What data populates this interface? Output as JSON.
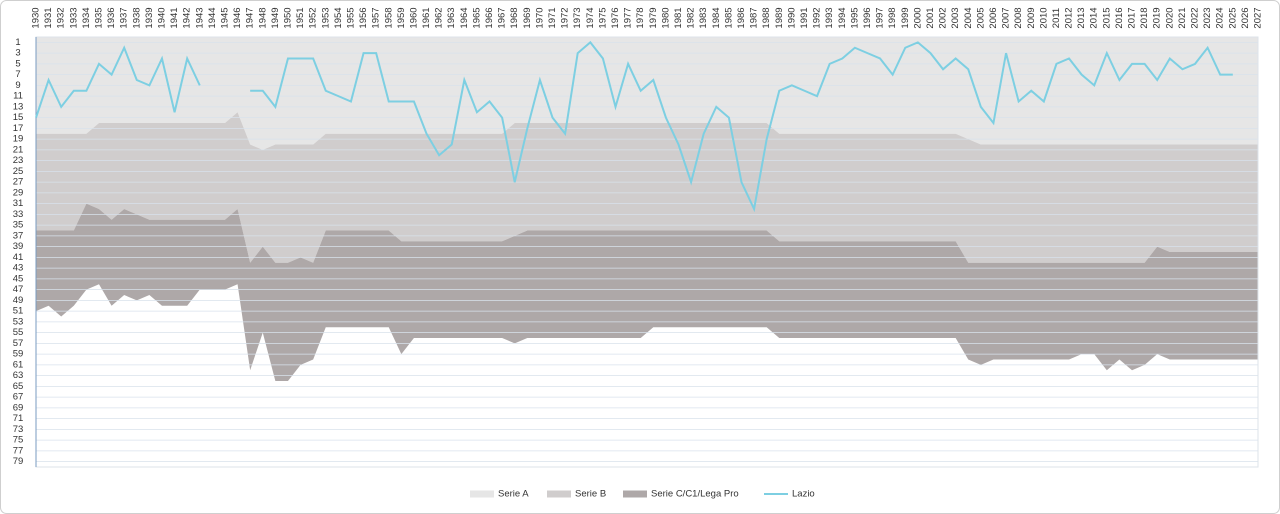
{
  "chart_data": {
    "type": "area_line",
    "categories": [
      "1930",
      "1931",
      "1932",
      "1933",
      "1934",
      "1935",
      "1936",
      "1937",
      "1938",
      "1939",
      "1940",
      "1941",
      "1942",
      "1943",
      "1944",
      "1945",
      "1946",
      "1947",
      "1948",
      "1949",
      "1950",
      "1951",
      "1952",
      "1953",
      "1954",
      "1955",
      "1956",
      "1957",
      "1958",
      "1959",
      "1960",
      "1961",
      "1962",
      "1963",
      "1964",
      "1965",
      "1966",
      "1967",
      "1968",
      "1969",
      "1970",
      "1971",
      "1972",
      "1973",
      "1974",
      "1975",
      "1976",
      "1977",
      "1978",
      "1979",
      "1980",
      "1981",
      "1982",
      "1983",
      "1984",
      "1985",
      "1986",
      "1987",
      "1988",
      "1989",
      "1990",
      "1991",
      "1992",
      "1993",
      "1994",
      "1995",
      "1996",
      "1997",
      "1998",
      "1999",
      "2000",
      "2001",
      "2002",
      "2003",
      "2004",
      "2005",
      "2006",
      "2007",
      "2008",
      "2009",
      "2010",
      "2011",
      "2012",
      "2013",
      "2014",
      "2015",
      "2016",
      "2017",
      "2018",
      "2019",
      "2020",
      "2021",
      "2022",
      "2023",
      "2024",
      "2025",
      "2026",
      "2027"
    ],
    "series": [
      {
        "name": "Serie A",
        "kind": "area",
        "color": "#e6e6e6",
        "values": [
          18,
          18,
          18,
          18,
          18,
          16,
          16,
          16,
          16,
          16,
          16,
          16,
          16,
          16,
          16,
          16,
          14,
          20,
          21,
          20,
          20,
          20,
          20,
          18,
          18,
          18,
          18,
          18,
          18,
          18,
          18,
          18,
          18,
          18,
          18,
          18,
          18,
          18,
          16,
          16,
          16,
          16,
          16,
          16,
          16,
          16,
          16,
          16,
          16,
          16,
          16,
          16,
          16,
          16,
          16,
          16,
          16,
          16,
          16,
          18,
          18,
          18,
          18,
          18,
          18,
          18,
          18,
          18,
          18,
          18,
          18,
          18,
          18,
          18,
          19,
          20,
          20,
          20,
          20,
          20,
          20,
          20,
          20,
          20,
          20,
          20,
          20,
          20,
          20,
          20,
          20,
          20,
          20,
          20,
          20,
          20,
          20,
          20
        ]
      },
      {
        "name": "Serie B",
        "kind": "area",
        "color": "#d0cdcd",
        "values": [
          18,
          18,
          18,
          18,
          13,
          16,
          18,
          16,
          17,
          18,
          18,
          18,
          18,
          18,
          18,
          18,
          18,
          22,
          18,
          22,
          22,
          21,
          22,
          18,
          18,
          18,
          18,
          18,
          18,
          20,
          20,
          20,
          20,
          20,
          20,
          20,
          20,
          20,
          21,
          20,
          20,
          20,
          20,
          20,
          20,
          20,
          20,
          20,
          20,
          20,
          20,
          20,
          20,
          20,
          20,
          20,
          20,
          20,
          20,
          20,
          20,
          20,
          20,
          20,
          20,
          20,
          20,
          20,
          20,
          20,
          20,
          20,
          20,
          20,
          23,
          22,
          22,
          22,
          22,
          22,
          22,
          22,
          22,
          22,
          22,
          22,
          22,
          22,
          22,
          19,
          20,
          20,
          20,
          20,
          20,
          20,
          20,
          20
        ]
      },
      {
        "name": "Serie C/C1/Lega Pro",
        "kind": "area",
        "color": "#aea8a8",
        "values": [
          15,
          14,
          16,
          14,
          16,
          14,
          16,
          16,
          16,
          14,
          16,
          16,
          16,
          13,
          13,
          13,
          14,
          20,
          16,
          22,
          22,
          20,
          18,
          18,
          18,
          18,
          18,
          18,
          18,
          21,
          18,
          18,
          18,
          18,
          18,
          18,
          18,
          18,
          20,
          20,
          20,
          20,
          20,
          20,
          20,
          20,
          20,
          20,
          20,
          18,
          18,
          18,
          18,
          18,
          18,
          18,
          18,
          18,
          18,
          18,
          18,
          18,
          18,
          18,
          18,
          18,
          18,
          18,
          18,
          18,
          18,
          18,
          18,
          18,
          18,
          19,
          18,
          18,
          18,
          18,
          18,
          18,
          18,
          17,
          17,
          20,
          18,
          20,
          19,
          20,
          20,
          20,
          20,
          20,
          20,
          20,
          20,
          20
        ]
      },
      {
        "name": "Lazio",
        "kind": "line",
        "color": "#7dcfe2",
        "values": [
          15,
          8,
          13,
          10,
          10,
          5,
          7,
          2,
          8,
          9,
          4,
          14,
          4,
          9,
          null,
          null,
          null,
          10,
          10,
          13,
          4,
          4,
          4,
          10,
          11,
          12,
          3,
          3,
          12,
          12,
          12,
          18,
          22,
          20,
          8,
          14,
          12,
          15,
          27,
          17,
          8,
          15,
          18,
          3,
          1,
          4,
          13,
          5,
          10,
          8,
          15,
          20,
          27,
          18,
          13,
          15,
          27,
          32,
          19,
          10,
          9,
          10,
          11,
          5,
          4,
          2,
          3,
          4,
          7,
          2,
          1,
          3,
          6,
          4,
          6,
          13,
          16,
          3,
          12,
          10,
          12,
          5,
          4,
          7,
          9,
          3,
          8,
          5,
          5,
          8,
          4,
          6,
          5,
          2,
          7,
          7,
          null,
          null
        ]
      }
    ],
    "ylim": [
      0,
      80
    ],
    "y_reversed": true,
    "yticks": [
      1,
      3,
      5,
      7,
      9,
      11,
      13,
      15,
      17,
      19,
      21,
      23,
      25,
      27,
      29,
      31,
      33,
      35,
      37,
      39,
      41,
      43,
      45,
      47,
      49,
      51,
      53,
      55,
      57,
      59,
      61,
      63,
      65,
      67,
      69,
      71,
      73,
      75,
      77,
      79
    ],
    "grid": true,
    "legend": "bottom"
  }
}
